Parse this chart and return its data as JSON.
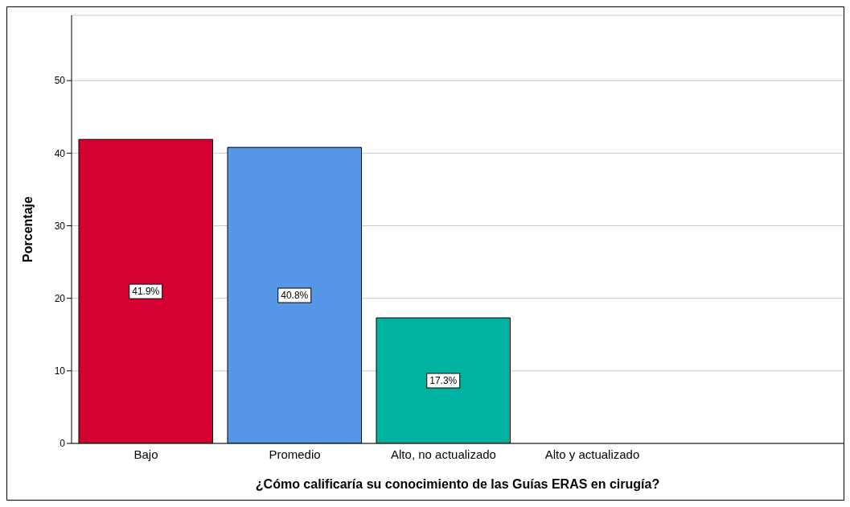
{
  "chart_data": {
    "type": "bar",
    "xlabel": "¿Cómo calificaría su conocimiento de las Guías ERAS en cirugía?",
    "ylabel": "Porcentaje",
    "categories": [
      "Bajo",
      "Promedio",
      "Alto, no actualizado",
      "Alto y actualizado"
    ],
    "values": [
      41.9,
      40.8,
      17.3,
      0
    ],
    "colors": [
      "#d50032",
      "#5596e6",
      "#00b2a0",
      "#d50032"
    ],
    "value_labels": [
      "41.9%",
      "40.8%",
      "17.3%",
      null
    ],
    "ylim": [
      0,
      59
    ],
    "yticks": [
      0,
      10,
      20,
      30,
      40,
      50
    ],
    "grid": "y"
  }
}
